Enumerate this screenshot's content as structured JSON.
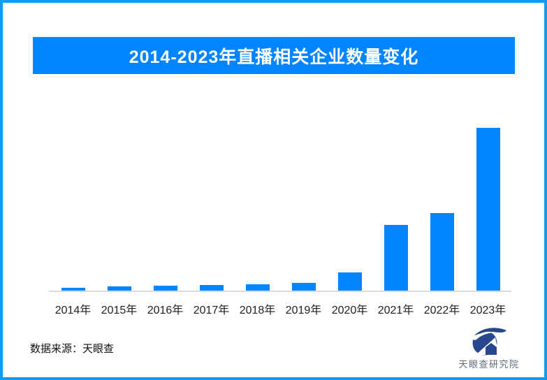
{
  "banner": {
    "title": "2014-2023年直播相关企业数量变化"
  },
  "footer": {
    "source": "数据来源：天眼查",
    "logo_text": "天眼查研究院"
  },
  "icons": {
    "logo": "tianyancha-eye-logo"
  },
  "colors": {
    "page_border": "#0D9CF8",
    "banner_bg": "#0084FF",
    "banner_text": "#FFFFFF",
    "bar": "#0084FF",
    "axis_line": "#D9D9D9",
    "tick_text": "#1F1F1F",
    "source_text": "#111111",
    "logo_navy": "#27488F",
    "logo_text": "#5D6B79"
  },
  "chart_data": {
    "type": "bar",
    "title": "2014-2023年直播相关企业数量变化",
    "categories": [
      "2014年",
      "2015年",
      "2016年",
      "2017年",
      "2018年",
      "2019年",
      "2020年",
      "2021年",
      "2022年",
      "2023年"
    ],
    "values_pct_of_max": [
      1.7,
      2.6,
      3.0,
      3.4,
      3.9,
      4.7,
      11.2,
      40.3,
      47.6,
      100
    ],
    "xlabel": "",
    "ylabel": "",
    "value_axis_labels_visible": false,
    "data_labels_visible": false,
    "grid": false,
    "legend": "none",
    "bar_color": "#0084FF"
  }
}
